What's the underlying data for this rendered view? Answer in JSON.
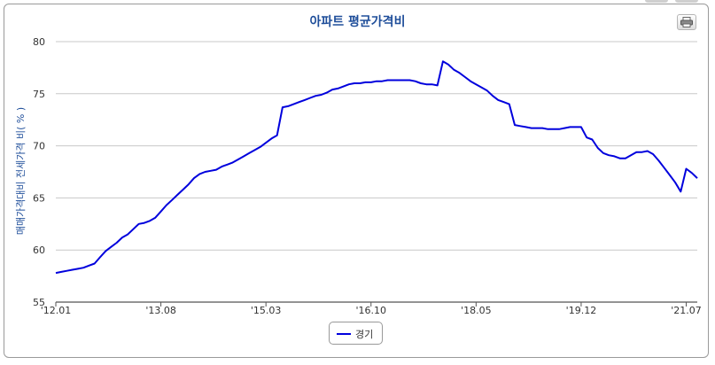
{
  "chart_data": {
    "type": "line",
    "title": "아파트 평균가격비",
    "ylabel": "매매가격대비 전세가격 비( % )",
    "xlabel": "",
    "ylim": [
      55,
      80
    ],
    "yticks": [
      55,
      60,
      65,
      70,
      75,
      80
    ],
    "xtick_labels": [
      "'12.01",
      "'13.08",
      "'15.03",
      "'16.10",
      "'18.05",
      "'19.12",
      "'21.07"
    ],
    "xtick_index": [
      0,
      19,
      38,
      57,
      76,
      95,
      114
    ],
    "grid": true,
    "legend_position": "bottom-center",
    "series": [
      {
        "name": "경기",
        "color": "#0000dd",
        "values": [
          57.8,
          57.9,
          58.0,
          58.1,
          58.2,
          58.3,
          58.5,
          58.7,
          59.3,
          59.9,
          60.3,
          60.7,
          61.2,
          61.5,
          62.0,
          62.5,
          62.6,
          62.8,
          63.1,
          63.7,
          64.3,
          64.8,
          65.3,
          65.8,
          66.3,
          66.9,
          67.3,
          67.5,
          67.6,
          67.7,
          68.0,
          68.2,
          68.4,
          68.7,
          69.0,
          69.3,
          69.6,
          69.9,
          70.3,
          70.7,
          71.0,
          73.7,
          73.8,
          74.0,
          74.2,
          74.4,
          74.6,
          74.8,
          74.9,
          75.1,
          75.4,
          75.5,
          75.7,
          75.9,
          76.0,
          76.0,
          76.1,
          76.1,
          76.2,
          76.2,
          76.3,
          76.3,
          76.3,
          76.3,
          76.3,
          76.2,
          76.0,
          75.9,
          75.9,
          75.8,
          78.1,
          77.8,
          77.3,
          77.0,
          76.6,
          76.2,
          75.9,
          75.6,
          75.3,
          74.8,
          74.4,
          74.2,
          74.0,
          72.0,
          71.9,
          71.8,
          71.7,
          71.7,
          71.7,
          71.6,
          71.6,
          71.6,
          71.7,
          71.8,
          71.8,
          71.8,
          70.8,
          70.6,
          69.8,
          69.3,
          69.1,
          69.0,
          68.8,
          68.8,
          69.1,
          69.4,
          69.4,
          69.5,
          69.2,
          68.6,
          67.9,
          67.2,
          66.5,
          65.6,
          67.8,
          67.4,
          66.9
        ]
      }
    ]
  }
}
